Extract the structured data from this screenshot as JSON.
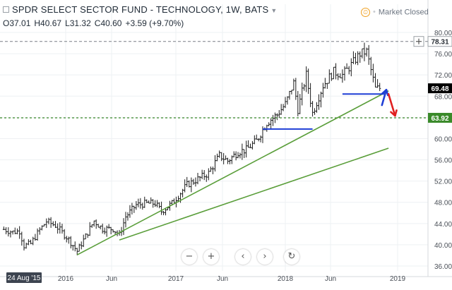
{
  "header": {
    "title": "SPDR SELECT SECTOR FUND - TECHNOLOGY, 1W, BATS",
    "open": "O37.01",
    "high": "H40.67",
    "low": "L31.32",
    "close": "C40.60",
    "change": "+3.59 (+9.70%)",
    "market_status": "Market Closed"
  },
  "controls": {
    "zoom_out": "−",
    "zoom_in": "+",
    "scroll_back": "‹",
    "scroll_forward": "›",
    "reset": "↻"
  },
  "colors": {
    "bars": "#1a1a1a",
    "trendlines": "#5a9e3a",
    "horizontal_support": "#1f3fd6",
    "up_arrow": "#1f3fd6",
    "down_arrow": "#e02020",
    "level_line": "#3a8a2a",
    "price_tag": "#000000",
    "level_tag": "#3a8a2a"
  },
  "chart_data": {
    "type": "candlestick",
    "interval": "1W",
    "y_axis": {
      "ticks": [
        "80.00",
        "76.00",
        "72.00",
        "68.00",
        "64.00",
        "60.00",
        "56.00",
        "52.00",
        "48.00",
        "44.00",
        "40.00",
        "36.00"
      ],
      "ylim": [
        35,
        82
      ],
      "position": "right"
    },
    "x_axis": {
      "ticks": [
        "2016",
        "Jun",
        "2017",
        "Jun",
        "2018",
        "Jun",
        "2019"
      ],
      "cursor_label": "24 Aug '15",
      "xlim": [
        "2015-06-15",
        "2019-03-01"
      ]
    },
    "price_labels": [
      {
        "value": 78.31,
        "text": "78.31",
        "style": "crosshair"
      },
      {
        "value": 69.48,
        "text": "69.48",
        "style": "last"
      },
      {
        "value": 63.92,
        "text": "63.92",
        "style": "level"
      }
    ],
    "horizontal_level": 63.92,
    "crosshair_level": 78.31,
    "price_path": [
      [
        "2015-06-22",
        42.9
      ],
      [
        "2015-07-20",
        42.4
      ],
      [
        "2015-08-10",
        42.6
      ],
      [
        "2015-08-24",
        39.8
      ],
      [
        "2015-09-14",
        40.2
      ],
      [
        "2015-10-12",
        42.8
      ],
      [
        "2015-11-02",
        44.4
      ],
      [
        "2015-12-01",
        43.6
      ],
      [
        "2016-01-11",
        41.0
      ],
      [
        "2016-02-08",
        38.8
      ],
      [
        "2016-03-07",
        41.6
      ],
      [
        "2016-04-04",
        44.5
      ],
      [
        "2016-05-02",
        43.0
      ],
      [
        "2016-06-06",
        43.0
      ],
      [
        "2016-06-27",
        41.8
      ],
      [
        "2016-07-18",
        45.3
      ],
      [
        "2016-08-22",
        47.5
      ],
      [
        "2016-09-26",
        47.8
      ],
      [
        "2016-10-24",
        47.8
      ],
      [
        "2016-11-14",
        46.3
      ],
      [
        "2016-12-19",
        47.8
      ],
      [
        "2017-02-06",
        51.3
      ],
      [
        "2017-03-20",
        52.6
      ],
      [
        "2017-04-17",
        53.5
      ],
      [
        "2017-05-22",
        56.8
      ],
      [
        "2017-06-19",
        55.8
      ],
      [
        "2017-07-24",
        57.5
      ],
      [
        "2017-08-21",
        57.9
      ],
      [
        "2017-09-25",
        59.6
      ],
      [
        "2017-10-30",
        63.0
      ],
      [
        "2017-12-04",
        64.5
      ],
      [
        "2018-01-02",
        66.6
      ],
      [
        "2018-01-29",
        70.5
      ],
      [
        "2018-02-12",
        65.5
      ],
      [
        "2018-03-12",
        72.0
      ],
      [
        "2018-04-02",
        64.8
      ],
      [
        "2018-05-07",
        70.0
      ],
      [
        "2018-06-11",
        72.6
      ],
      [
        "2018-07-09",
        72.0
      ],
      [
        "2018-08-06",
        73.9
      ],
      [
        "2018-09-03",
        76.0
      ],
      [
        "2018-09-24",
        76.4
      ],
      [
        "2018-10-08",
        72.9
      ],
      [
        "2018-10-22",
        69.4
      ],
      [
        "2018-11-05",
        69.5
      ]
    ],
    "annotations": {
      "trendlines": [
        {
          "from": [
            "2016-02-08",
            38.1
          ],
          "to": [
            "2018-12-03",
            69.0
          ]
        },
        {
          "from": [
            "2016-06-27",
            40.9
          ],
          "to": [
            "2018-12-03",
            58.2
          ]
        }
      ],
      "support_lines": [
        {
          "from": [
            "2017-10-16",
            61.8
          ],
          "to": [
            "2018-04-02",
            61.8
          ]
        },
        {
          "from": [
            "2018-07-09",
            68.4
          ],
          "to": [
            "2018-11-19",
            68.4
          ]
        }
      ],
      "arrows": [
        {
          "color": "blue",
          "from": [
            "2018-11-12",
            66.3
          ],
          "to": [
            "2018-11-26",
            69.2
          ]
        },
        {
          "color": "red",
          "from": [
            "2018-12-03",
            68.4
          ],
          "to": [
            "2018-12-24",
            64.3
          ]
        }
      ]
    }
  }
}
